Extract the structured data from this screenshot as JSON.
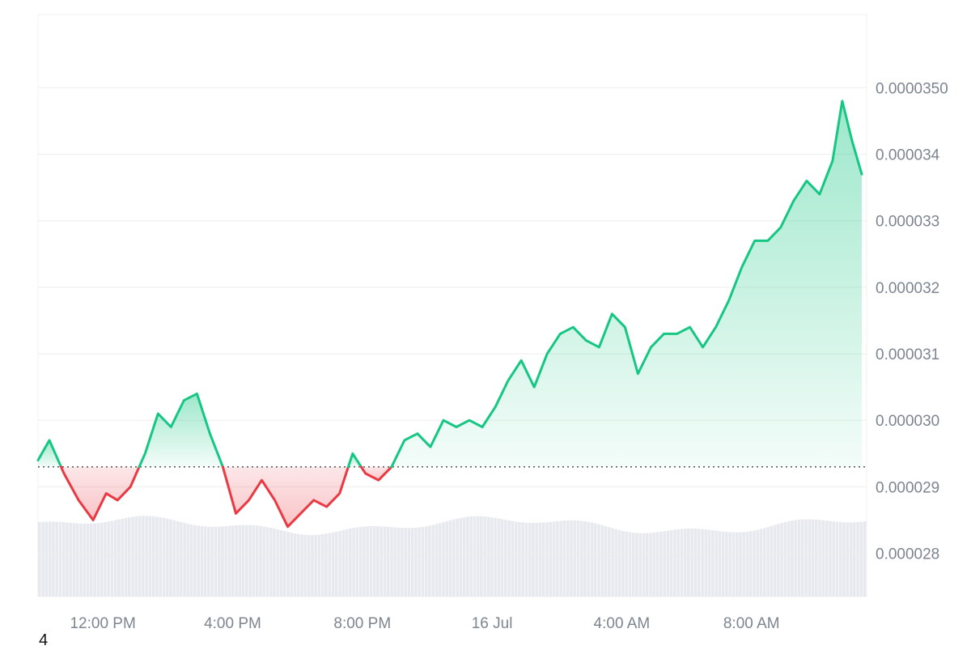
{
  "chart_data": {
    "type": "area",
    "baseline": 2.93e-05,
    "colors": {
      "up": "#16c784",
      "down": "#ea3943",
      "grid": "#eeeeee",
      "volume": "#e7e9ee"
    },
    "x_ticks": [
      "12:00 PM",
      "4:00 PM",
      "8:00 PM",
      "16 Jul",
      "4:00 AM",
      "8:00 AM"
    ],
    "y_ticks": [
      {
        "value": 2.8e-05,
        "label": "0.000028"
      },
      {
        "value": 2.9e-05,
        "label": "0.000029"
      },
      {
        "value": 3e-05,
        "label": "0.000030"
      },
      {
        "value": 3.1e-05,
        "label": "0.000031"
      },
      {
        "value": 3.2e-05,
        "label": "0.000032"
      },
      {
        "value": 3.3e-05,
        "label": "0.000033"
      },
      {
        "value": 3.4e-05,
        "label": "0.000034"
      },
      {
        "value": 3.5e-05,
        "label": "0.0000350"
      }
    ],
    "ylim": [
      2.735e-05,
      3.61e-05
    ],
    "x_hours": [
      0,
      0.35,
      0.8,
      1.25,
      1.7,
      2.1,
      2.45,
      2.85,
      3.3,
      3.7,
      4.1,
      4.5,
      4.9,
      5.3,
      5.7,
      6.1,
      6.5,
      6.9,
      7.3,
      7.7,
      8.1,
      8.5,
      8.9,
      9.3,
      9.7,
      10.1,
      10.5,
      10.9,
      11.3,
      11.7,
      12.1,
      12.5,
      12.9,
      13.3,
      13.7,
      14.1,
      14.5,
      14.9,
      15.3,
      15.7,
      16.1,
      16.5,
      16.9,
      17.3,
      17.7,
      18.1,
      18.5,
      18.9,
      19.3,
      19.7,
      20.1,
      20.5,
      20.9,
      21.3,
      21.7,
      22.1,
      22.5,
      22.9,
      23.3,
      23.7,
      24.1,
      24.5,
      24.8,
      25.1,
      25.4
    ],
    "prices": [
      2.94e-05,
      2.97e-05,
      2.92e-05,
      2.88e-05,
      2.85e-05,
      2.89e-05,
      2.88e-05,
      2.9e-05,
      2.95e-05,
      3.01e-05,
      2.99e-05,
      3.03e-05,
      3.04e-05,
      2.98e-05,
      2.93e-05,
      2.86e-05,
      2.88e-05,
      2.91e-05,
      2.88e-05,
      2.84e-05,
      2.86e-05,
      2.88e-05,
      2.87e-05,
      2.89e-05,
      2.95e-05,
      2.92e-05,
      2.91e-05,
      2.93e-05,
      2.97e-05,
      2.98e-05,
      2.96e-05,
      3e-05,
      2.99e-05,
      3e-05,
      2.99e-05,
      3.02e-05,
      3.06e-05,
      3.09e-05,
      3.05e-05,
      3.1e-05,
      3.13e-05,
      3.14e-05,
      3.12e-05,
      3.11e-05,
      3.16e-05,
      3.14e-05,
      3.07e-05,
      3.11e-05,
      3.13e-05,
      3.13e-05,
      3.14e-05,
      3.11e-05,
      3.14e-05,
      3.18e-05,
      3.23e-05,
      3.27e-05,
      3.27e-05,
      3.29e-05,
      3.33e-05,
      3.36e-05,
      3.34e-05,
      3.39e-05,
      3.48e-05,
      3.42e-05,
      3.37e-05
    ]
  },
  "footer": {
    "corner_label": "4"
  }
}
